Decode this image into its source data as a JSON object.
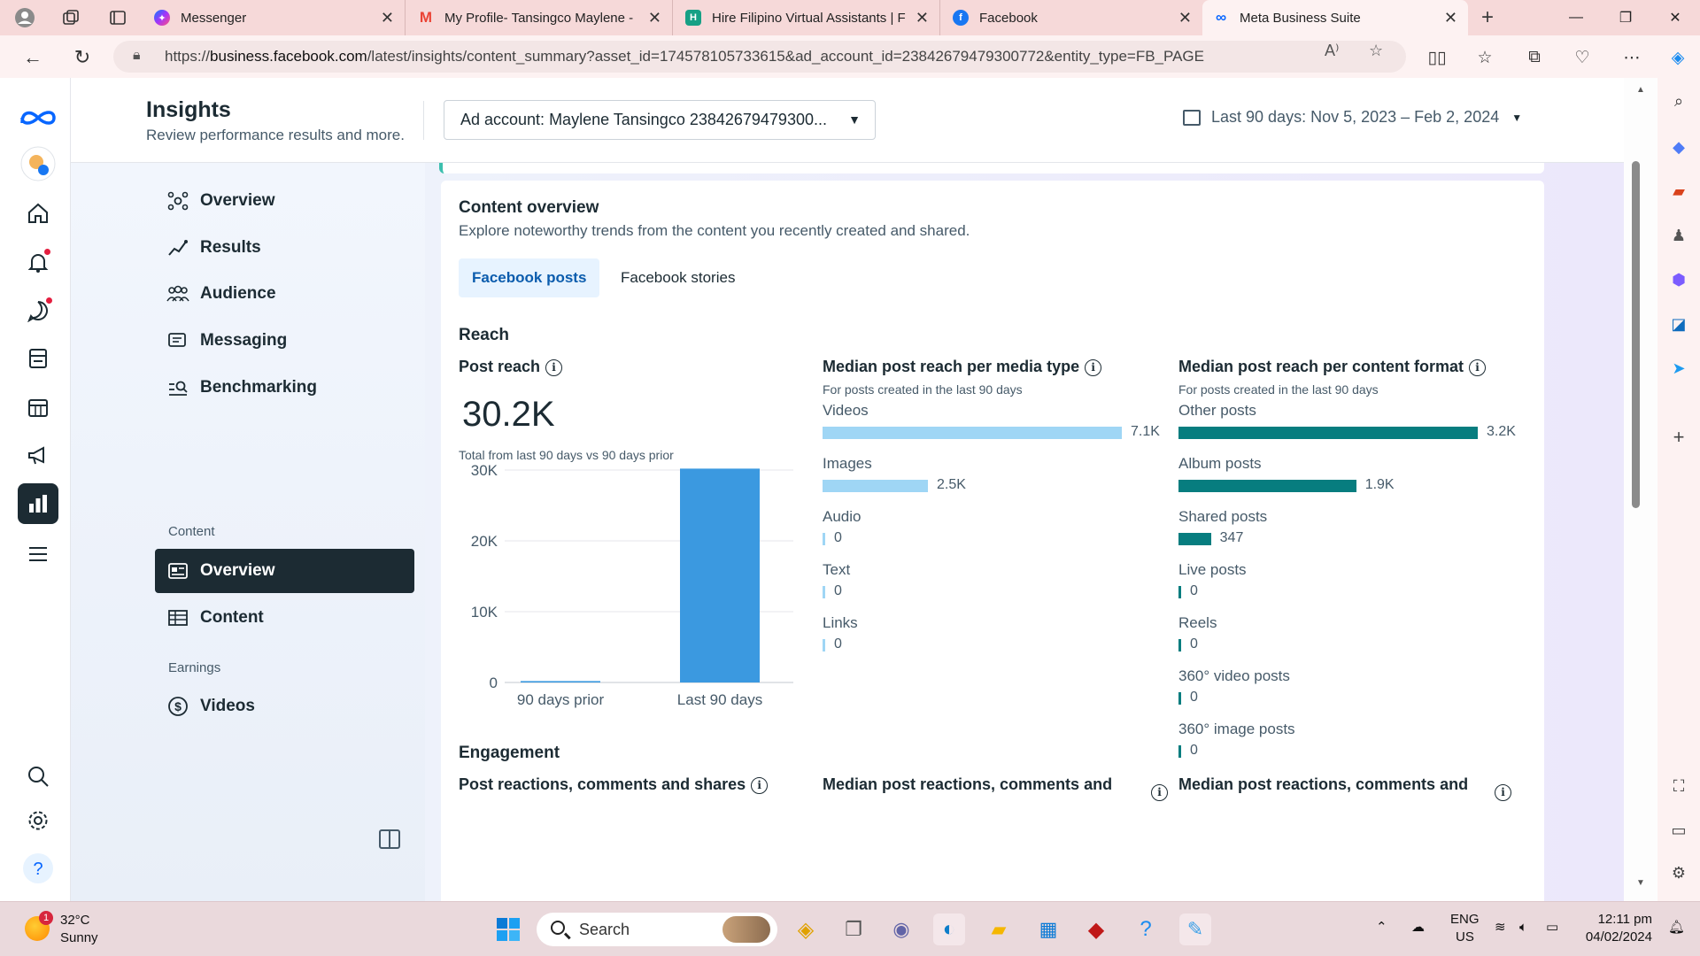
{
  "browser": {
    "tabs": [
      {
        "title": "Messenger",
        "icon": "messenger-icon",
        "color": "#a334fa"
      },
      {
        "title": "My Profile- Tansingco Maylene -",
        "icon": "gmail-icon",
        "color": "#ea4335"
      },
      {
        "title": "Hire Filipino Virtual Assistants | F",
        "icon": "site-icon",
        "color": "#16a085"
      },
      {
        "title": "Facebook",
        "icon": "facebook-icon",
        "color": "#1877f2"
      },
      {
        "title": "Meta Business Suite",
        "icon": "meta-icon",
        "color": "#0866ff"
      }
    ],
    "url_prefix": "https://",
    "url_host": "business.facebook.com",
    "url_path": "/latest/insights/content_summary?asset_id=174578105733615&ad_account_id=23842679479300772&entity_type=FB_PAGE"
  },
  "header": {
    "title": "Insights",
    "subtitle": "Review performance results and more.",
    "ad_account": "Ad account: Maylene Tansingco 23842679479300...",
    "date_range": "Last 90 days: Nov 5, 2023 – Feb 2, 2024"
  },
  "nav": {
    "items": [
      {
        "label": "Overview",
        "icon": "overview-icon"
      },
      {
        "label": "Results",
        "icon": "results-icon"
      },
      {
        "label": "Audience",
        "icon": "audience-icon"
      },
      {
        "label": "Messaging",
        "icon": "messaging-icon"
      },
      {
        "label": "Benchmarking",
        "icon": "benchmarking-icon"
      }
    ],
    "content_section": "Content",
    "content_items": [
      {
        "label": "Overview",
        "icon": "content-overview-icon",
        "active": true
      },
      {
        "label": "Content",
        "icon": "content-table-icon"
      }
    ],
    "earnings_section": "Earnings",
    "earnings_items": [
      {
        "label": "Videos",
        "icon": "dollar-icon"
      }
    ]
  },
  "overview": {
    "title": "Content overview",
    "description": "Explore noteworthy trends from the content you recently created and shared.",
    "tabs": [
      "Facebook posts",
      "Facebook stories"
    ],
    "reach_heading": "Reach",
    "post_reach": {
      "label": "Post reach",
      "value": "30.2K",
      "note": "Total from last 90 days vs 90 days prior"
    },
    "media_type": {
      "label": "Median post reach per media type",
      "note": "For posts created in the last 90 days",
      "rows": [
        {
          "label": "Videos",
          "value": 7100,
          "display": "7.1K"
        },
        {
          "label": "Images",
          "value": 2500,
          "display": "2.5K"
        },
        {
          "label": "Audio",
          "value": 0,
          "display": "0"
        },
        {
          "label": "Text",
          "value": 0,
          "display": "0"
        },
        {
          "label": "Links",
          "value": 0,
          "display": "0"
        }
      ],
      "color": "#9fd6f5"
    },
    "content_format": {
      "label": "Median post reach per content format",
      "note": "For posts created in the last 90 days",
      "rows": [
        {
          "label": "Other posts",
          "value": 3200,
          "display": "3.2K"
        },
        {
          "label": "Album posts",
          "value": 1900,
          "display": "1.9K"
        },
        {
          "label": "Shared posts",
          "value": 347,
          "display": "347"
        },
        {
          "label": "Live posts",
          "value": 0,
          "display": "0"
        },
        {
          "label": "Reels",
          "value": 0,
          "display": "0"
        },
        {
          "label": "360° video posts",
          "value": 0,
          "display": "0"
        },
        {
          "label": "360° image posts",
          "value": 0,
          "display": "0"
        }
      ],
      "color": "#077d7f"
    },
    "engagement_heading": "Engagement",
    "engagement_labels": [
      "Post reactions, comments and shares",
      "Median post reactions, comments and",
      "Median post reactions, comments and"
    ]
  },
  "chart_data": {
    "type": "bar",
    "categories": [
      "90 days prior",
      "Last 90 days"
    ],
    "values": [
      200,
      30200
    ],
    "yticks": [
      "0",
      "10K",
      "20K",
      "30K"
    ],
    "ylim": [
      0,
      30000
    ],
    "color": "#3b99e0"
  },
  "taskbar": {
    "weather_temp": "32°C",
    "weather_desc": "Sunny",
    "weather_badge": "1",
    "search_placeholder": "Search",
    "lang": "ENG",
    "region": "US",
    "time": "12:11 pm",
    "date": "04/02/2024"
  }
}
